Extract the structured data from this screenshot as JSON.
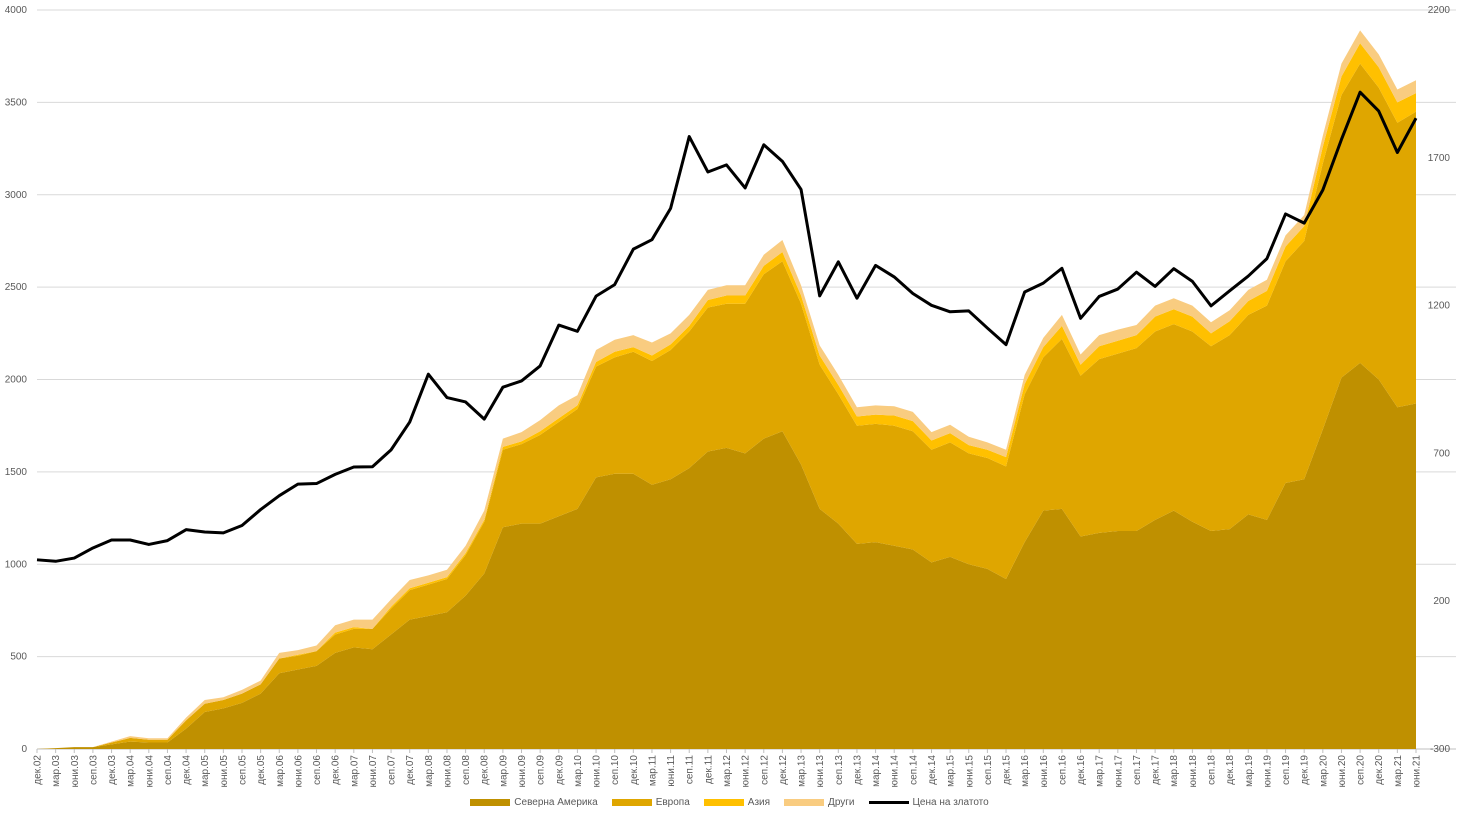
{
  "chart_data": {
    "type": "area",
    "stacked": true,
    "title": "",
    "xlabel": "",
    "ylabel": "",
    "ylim": [
      0,
      4000
    ],
    "y_ticks": [
      0,
      500,
      1000,
      1500,
      2000,
      2500,
      3000,
      3500,
      4000
    ],
    "y2lim": [
      -300,
      2200
    ],
    "y2_ticks": [
      -300,
      200,
      700,
      1200,
      1700,
      2200
    ],
    "grid": true,
    "legend_position": "bottom",
    "categories": [
      "дек.02",
      "мар.03",
      "юни.03",
      "сеп.03",
      "дек.03",
      "мар.04",
      "юни.04",
      "сеп.04",
      "дек.04",
      "мар.05",
      "юни.05",
      "сеп.05",
      "дек.05",
      "мар.06",
      "юни.06",
      "сеп.06",
      "дек.06",
      "мар.07",
      "юни.07",
      "сеп.07",
      "дек.07",
      "мар.08",
      "юни.08",
      "сеп.08",
      "дек.08",
      "мар.09",
      "юни.09",
      "сеп.09",
      "дек.09",
      "мар.10",
      "юни.10",
      "сеп.10",
      "дек.10",
      "мар.11",
      "юни.11",
      "сеп.11",
      "дек.11",
      "мар.12",
      "юни.12",
      "сеп.12",
      "дек.12",
      "мар.13",
      "юни.13",
      "сеп.13",
      "дек.13",
      "мар.14",
      "юни.14",
      "сеп.14",
      "дек.14",
      "мар.15",
      "юни.15",
      "сеп.15",
      "дек.15",
      "мар.16",
      "юни.16",
      "сеп.16",
      "дек.16",
      "мар.17",
      "юни.17",
      "сеп.17",
      "дек.17",
      "мар.18",
      "юни.18",
      "сеп.18",
      "дек.18",
      "мар.19",
      "юни.19",
      "сеп.19",
      "дек.19",
      "мар.20",
      "юни.20",
      "сеп.20",
      "дек.20",
      "мар.21",
      "юни.21"
    ],
    "series": [
      {
        "name": "Северна Америка",
        "color": "#BF9000",
        "axis": "left",
        "values": [
          0,
          5,
          10,
          10,
          25,
          40,
          35,
          35,
          110,
          200,
          220,
          250,
          300,
          410,
          430,
          450,
          520,
          550,
          540,
          620,
          700,
          720,
          740,
          830,
          950,
          1200,
          1220,
          1220,
          1260,
          1300,
          1470,
          1490,
          1490,
          1430,
          1460,
          1520,
          1610,
          1630,
          1600,
          1680,
          1720,
          1540,
          1300,
          1220,
          1110,
          1120,
          1100,
          1080,
          1010,
          1040,
          1000,
          975,
          920,
          1120,
          1290,
          1300,
          1150,
          1170,
          1180,
          1180,
          1240,
          1290,
          1230,
          1180,
          1190,
          1270,
          1240,
          1440,
          1460,
          1730,
          2010,
          2090,
          2000,
          1850,
          1870
        ]
      },
      {
        "name": "Европа",
        "color": "#DFA600",
        "axis": "left",
        "values": [
          0,
          0,
          0,
          0,
          10,
          20,
          15,
          15,
          45,
          45,
          45,
          50,
          50,
          80,
          75,
          80,
          100,
          100,
          110,
          140,
          160,
          170,
          180,
          220,
          280,
          420,
          430,
          480,
          510,
          540,
          600,
          630,
          660,
          670,
          700,
          740,
          780,
          780,
          810,
          890,
          920,
          870,
          780,
          700,
          640,
          640,
          650,
          640,
          610,
          620,
          600,
          600,
          610,
          800,
          830,
          920,
          870,
          940,
          960,
          990,
          1020,
          1010,
          1030,
          1000,
          1050,
          1080,
          1160,
          1200,
          1290,
          1440,
          1530,
          1620,
          1580,
          1540,
          1580
        ]
      },
      {
        "name": "Азия",
        "color": "#FFC000",
        "axis": "left",
        "values": [
          0,
          0,
          0,
          0,
          0,
          0,
          0,
          0,
          0,
          0,
          0,
          0,
          0,
          0,
          5,
          0,
          10,
          10,
          0,
          10,
          10,
          10,
          10,
          10,
          10,
          15,
          15,
          20,
          20,
          20,
          25,
          30,
          25,
          30,
          30,
          30,
          40,
          45,
          45,
          45,
          50,
          45,
          50,
          50,
          50,
          50,
          55,
          55,
          50,
          50,
          45,
          45,
          50,
          55,
          55,
          70,
          60,
          70,
          70,
          70,
          80,
          80,
          80,
          70,
          75,
          75,
          80,
          80,
          80,
          90,
          100,
          110,
          110,
          110,
          100
        ]
      },
      {
        "name": "Други",
        "color": "#F9CC80",
        "axis": "left",
        "values": [
          0,
          0,
          0,
          0,
          5,
          10,
          8,
          8,
          15,
          20,
          15,
          20,
          20,
          30,
          25,
          30,
          40,
          40,
          50,
          40,
          45,
          40,
          40,
          40,
          50,
          45,
          50,
          60,
          70,
          55,
          65,
          65,
          65,
          70,
          60,
          60,
          55,
          55,
          55,
          60,
          65,
          55,
          55,
          55,
          50,
          50,
          50,
          50,
          45,
          45,
          45,
          40,
          40,
          50,
          50,
          60,
          55,
          60,
          60,
          55,
          60,
          60,
          60,
          60,
          60,
          60,
          60,
          60,
          60,
          60,
          70,
          70,
          70,
          70,
          70
        ]
      },
      {
        "name": "Цена на златото",
        "color": "#000000",
        "axis": "right",
        "type": "line",
        "values": [
          340,
          335,
          346,
          380,
          407,
          407,
          392,
          405,
          442,
          434,
          431,
          456,
          510,
          557,
          596,
          598,
          629,
          654,
          655,
          712,
          806,
          968,
          889,
          874,
          816,
          924,
          945,
          996,
          1134,
          1113,
          1232,
          1271,
          1391,
          1423,
          1529,
          1772,
          1652,
          1676,
          1598,
          1744,
          1688,
          1593,
          1233,
          1348,
          1225,
          1336,
          1297,
          1241,
          1201,
          1179,
          1182,
          1124,
          1068,
          1246,
          1276,
          1326,
          1157,
          1231,
          1256,
          1313,
          1265,
          1325,
          1282,
          1199,
          1250,
          1300,
          1359,
          1510,
          1479,
          1591,
          1762,
          1922,
          1858,
          1718,
          1834
        ]
      }
    ]
  }
}
